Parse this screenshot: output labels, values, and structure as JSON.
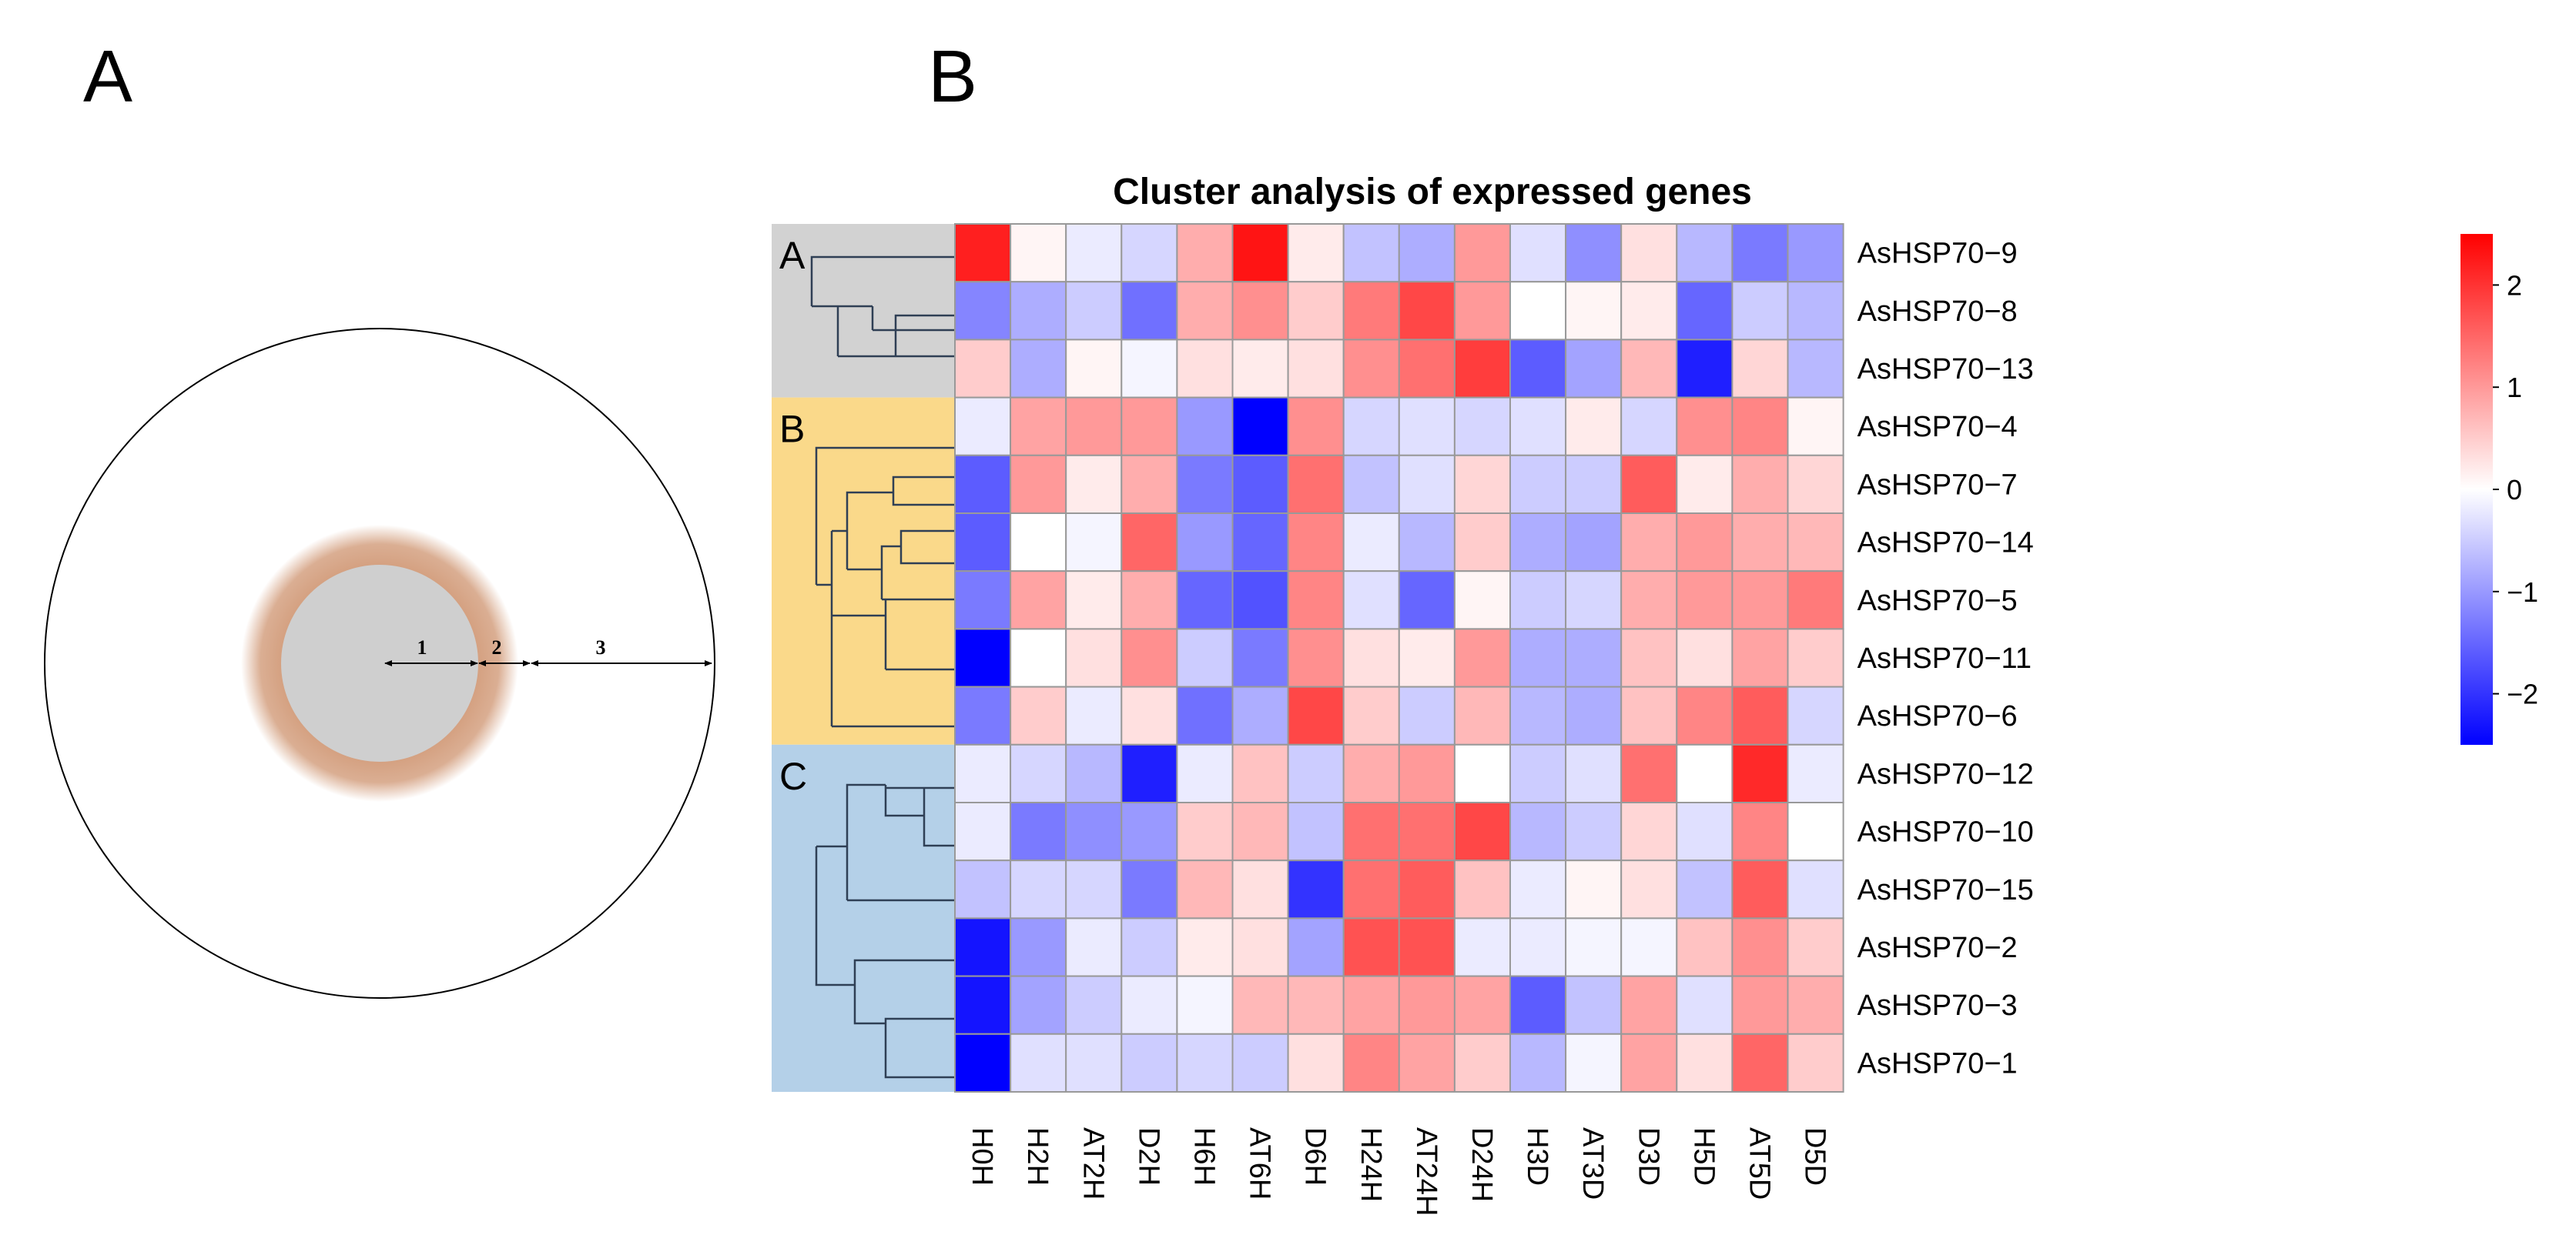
{
  "panels": {
    "left_letter": "A",
    "right_letter": "B"
  },
  "diagram": {
    "labels": [
      "1",
      "2",
      "3"
    ],
    "colors": {
      "inner": "#cfcfcf",
      "ring": "#d4a080",
      "outer": "#ffffff",
      "stroke": "#000000"
    }
  },
  "chart_data": {
    "type": "heatmap",
    "title": "Cluster analysis of expressed genes",
    "columns": [
      "H0H",
      "H2H",
      "AT2H",
      "D2H",
      "H6H",
      "AT6H",
      "D6H",
      "H24H",
      "AT24H",
      "D24H",
      "H3D",
      "AT3D",
      "D3D",
      "H5D",
      "AT5D",
      "D5D"
    ],
    "rows": [
      "AsHSP70−9",
      "AsHSP70−8",
      "AsHSP70−13",
      "AsHSP70−4",
      "AsHSP70−7",
      "AsHSP70−14",
      "AsHSP70−5",
      "AsHSP70−11",
      "AsHSP70−6",
      "AsHSP70−12",
      "AsHSP70−10",
      "AsHSP70−15",
      "AsHSP70−2",
      "AsHSP70−3",
      "AsHSP70−1"
    ],
    "values": [
      [
        2.2,
        0.1,
        -0.2,
        -0.4,
        0.8,
        2.3,
        0.2,
        -0.6,
        -0.8,
        1.0,
        -0.3,
        -1.1,
        0.3,
        -0.7,
        -1.3,
        -1.0
      ],
      [
        -1.2,
        -0.8,
        -0.5,
        -1.4,
        0.8,
        1.1,
        0.5,
        1.3,
        1.8,
        1.0,
        0.0,
        0.1,
        0.2,
        -1.5,
        -0.5,
        -0.7
      ],
      [
        0.5,
        -0.8,
        0.1,
        -0.1,
        0.3,
        0.2,
        0.3,
        1.1,
        1.4,
        1.9,
        -1.6,
        -0.9,
        0.7,
        -2.2,
        0.4,
        -0.7
      ],
      [
        -0.2,
        0.9,
        1.0,
        1.0,
        -1.0,
        -2.5,
        1.1,
        -0.4,
        -0.3,
        -0.4,
        -0.3,
        0.2,
        -0.4,
        1.1,
        1.2,
        0.1
      ],
      [
        -1.6,
        1.0,
        0.2,
        0.8,
        -1.3,
        -1.6,
        1.4,
        -0.6,
        -0.3,
        0.4,
        -0.5,
        -0.5,
        1.6,
        0.2,
        0.8,
        0.4
      ],
      [
        -1.6,
        0.0,
        -0.1,
        1.5,
        -1.0,
        -1.5,
        1.2,
        -0.2,
        -0.7,
        0.5,
        -0.8,
        -0.9,
        0.8,
        1.0,
        0.8,
        0.7
      ],
      [
        -1.3,
        0.9,
        0.2,
        0.8,
        -1.5,
        -1.7,
        1.2,
        -0.3,
        -1.5,
        0.1,
        -0.5,
        -0.4,
        0.8,
        1.0,
        1.0,
        1.3
      ],
      [
        -2.5,
        0.0,
        0.3,
        1.1,
        -0.5,
        -1.3,
        1.1,
        0.3,
        0.2,
        1.0,
        -0.8,
        -0.8,
        0.6,
        0.3,
        0.9,
        0.5
      ],
      [
        -1.3,
        0.5,
        -0.2,
        0.3,
        -1.4,
        -0.8,
        1.8,
        0.5,
        -0.5,
        0.7,
        -0.7,
        -0.8,
        0.6,
        1.2,
        1.6,
        -0.4
      ],
      [
        -0.2,
        -0.4,
        -0.7,
        -2.2,
        -0.2,
        0.6,
        -0.5,
        0.8,
        1.0,
        0.0,
        -0.5,
        -0.3,
        1.4,
        0.0,
        2.1,
        -0.2
      ],
      [
        -0.2,
        -1.3,
        -1.1,
        -1.0,
        0.5,
        0.7,
        -0.6,
        1.4,
        1.4,
        1.8,
        -0.7,
        -0.5,
        0.4,
        -0.3,
        1.2,
        0.0
      ],
      [
        -0.6,
        -0.4,
        -0.4,
        -1.3,
        0.7,
        0.3,
        -2.0,
        1.4,
        1.6,
        0.6,
        -0.2,
        0.1,
        0.3,
        -0.6,
        1.6,
        -0.3
      ],
      [
        -2.3,
        -1.0,
        -0.2,
        -0.5,
        0.2,
        0.3,
        -0.9,
        1.7,
        1.7,
        -0.2,
        -0.2,
        -0.1,
        -0.1,
        0.6,
        1.1,
        0.5
      ],
      [
        -2.3,
        -0.9,
        -0.5,
        -0.2,
        -0.1,
        0.7,
        0.7,
        0.9,
        1.0,
        0.9,
        -1.6,
        -0.6,
        0.9,
        -0.3,
        1.0,
        0.8
      ],
      [
        -2.5,
        -0.3,
        -0.3,
        -0.5,
        -0.4,
        -0.5,
        0.3,
        1.2,
        0.9,
        0.5,
        -0.7,
        -0.1,
        0.9,
        0.3,
        1.5,
        0.5
      ]
    ],
    "clusters": [
      {
        "label": "A",
        "rows": 3,
        "color": "#d2d2d2"
      },
      {
        "label": "B",
        "rows": 6,
        "color": "#fad98a"
      },
      {
        "label": "C",
        "rows": 6,
        "color": "#b4d0e8"
      }
    ],
    "color_scale": {
      "min": -2.5,
      "max": 2.5,
      "low": "#0000ff",
      "mid": "#ffffff",
      "high": "#ff0000"
    },
    "legend_ticks": [
      "2",
      "1",
      "0",
      "−1",
      "−2"
    ],
    "legend_tick_values": [
      2,
      1,
      0,
      -1,
      -2
    ]
  }
}
